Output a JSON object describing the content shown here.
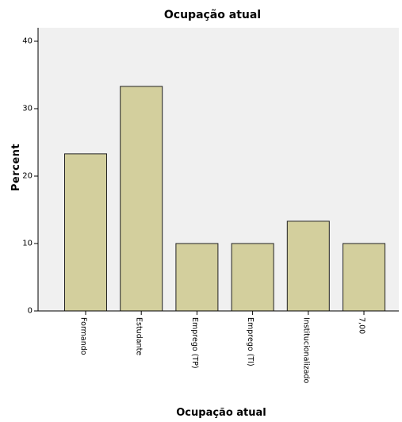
{
  "chart_data": {
    "type": "bar",
    "title": "Ocupação atual",
    "xlabel": "Ocupação atual",
    "ylabel": "Percent",
    "categories": [
      "Formando",
      "Estudante",
      "Emprego (TP)",
      "Emprego (TI)",
      "Institucionalizado",
      "7,00"
    ],
    "values": [
      23.3,
      33.3,
      10.0,
      10.0,
      13.3,
      10.0
    ],
    "yticks": [
      0,
      10,
      20,
      30,
      40
    ],
    "ylim": [
      0,
      42
    ],
    "grid": false,
    "legend": "none",
    "colors": {
      "bar_fill": "#d3cf9d",
      "bar_stroke": "#222222",
      "plot_background": "#f0f0f0",
      "axis": "#000000"
    }
  }
}
